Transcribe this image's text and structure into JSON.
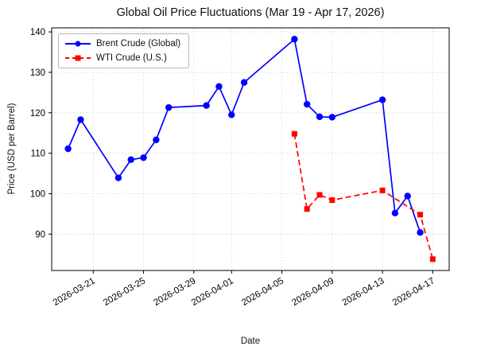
{
  "chart_data": {
    "type": "line",
    "title": "Global Oil Price Fluctuations (Mar 19 - Apr 17, 2026)",
    "xlabel": "Date",
    "ylabel": "Price (USD per Barrel)",
    "ylim": [
      81,
      141
    ],
    "y_ticks": [
      90,
      100,
      110,
      120,
      130,
      140
    ],
    "x_tick_labels": [
      "2026-03-21",
      "2026-03-25",
      "2026-03-29",
      "2026-04-01",
      "2026-04-05",
      "2026-04-09",
      "2026-04-13",
      "2026-04-17"
    ],
    "grid": true,
    "grid_style": "dotted",
    "legend_position": "upper left",
    "series": [
      {
        "name": "Brent Crude (Global)",
        "color": "#0000ff",
        "line_style": "solid",
        "marker": "circle",
        "x": [
          "2026-03-19",
          "2026-03-20",
          "2026-03-23",
          "2026-03-24",
          "2026-03-25",
          "2026-03-26",
          "2026-03-27",
          "2026-03-30",
          "2026-03-31",
          "2026-04-01",
          "2026-04-02",
          "2026-04-06",
          "2026-04-07",
          "2026-04-08",
          "2026-04-09",
          "2026-04-13",
          "2026-04-14",
          "2026-04-15",
          "2026-04-16"
        ],
        "values": [
          111.1,
          118.3,
          103.9,
          108.4,
          108.9,
          113.3,
          121.3,
          121.8,
          126.5,
          119.5,
          127.5,
          138.2,
          122.1,
          119.0,
          118.9,
          123.2,
          95.2,
          99.4,
          90.4
        ]
      },
      {
        "name": "WTI Crude (U.S.)",
        "color": "#ff0000",
        "line_style": "dashed",
        "marker": "square",
        "x": [
          "2026-04-06",
          "2026-04-07",
          "2026-04-08",
          "2026-04-09",
          "2026-04-13",
          "2026-04-16",
          "2026-04-17"
        ],
        "values": [
          114.8,
          96.2,
          99.7,
          98.4,
          100.8,
          94.8,
          83.8
        ]
      }
    ]
  }
}
